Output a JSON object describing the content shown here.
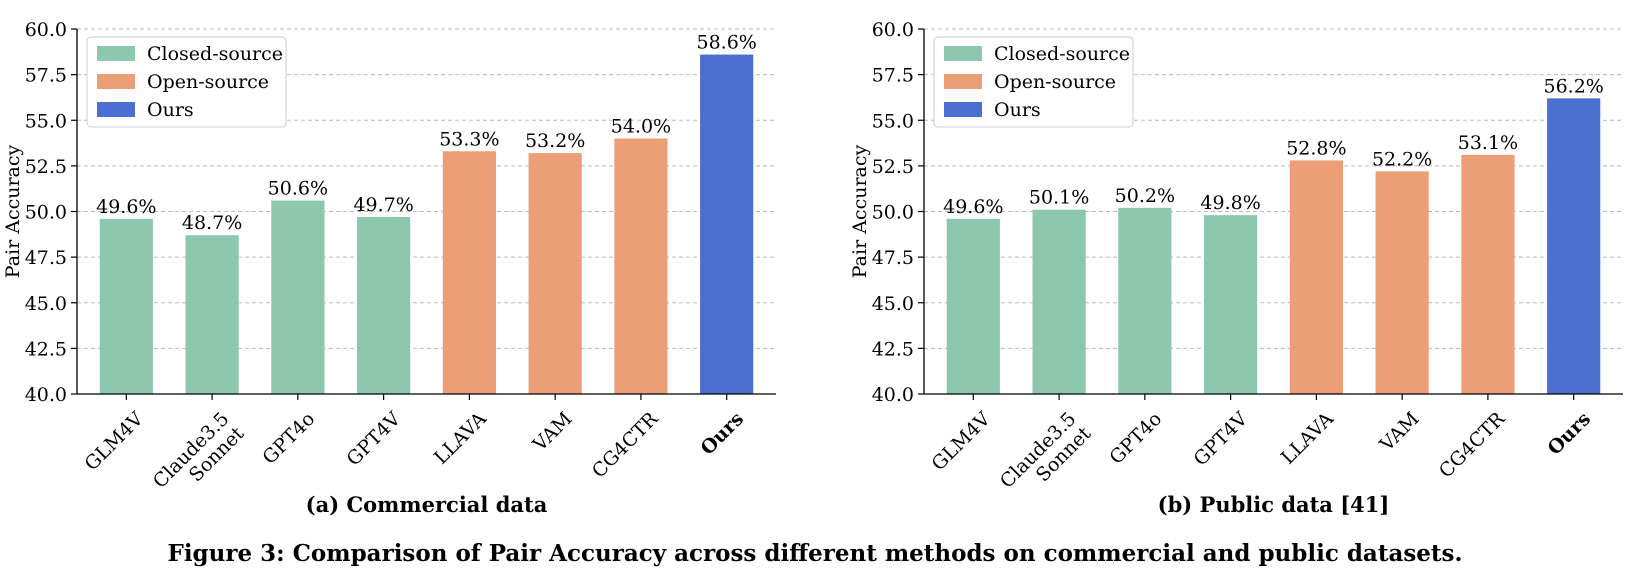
{
  "figure_caption": "Figure 3: Comparison of Pair Accuracy across different methods on commercial and public datasets.",
  "colors": {
    "closed_source": "#8dc7ae",
    "open_source": "#ec9e77",
    "ours": "#4a6fd1",
    "grid": "#bbbbbb",
    "axis": "#000000"
  },
  "chart_data": [
    {
      "type": "bar",
      "subcaption": "(a) Commercial data",
      "ylabel": "Pair Accuracy",
      "xlabel": "",
      "ylim": [
        40.0,
        60.0
      ],
      "yticks": [
        40.0,
        42.5,
        45.0,
        47.5,
        50.0,
        52.5,
        55.0,
        57.5,
        60.0
      ],
      "grid": true,
      "legend_position": "top-left",
      "legend": [
        {
          "label": "Closed-source",
          "group": "closed_source"
        },
        {
          "label": "Open-source",
          "group": "open_source"
        },
        {
          "label": "Ours",
          "group": "ours"
        }
      ],
      "categories": [
        "GLM4V",
        "Claude3.5\nSonnet",
        "GPT4o",
        "GPT4V",
        "LLAVA",
        "VAM",
        "CG4CTR",
        "Ours"
      ],
      "groups": [
        "closed_source",
        "closed_source",
        "closed_source",
        "closed_source",
        "open_source",
        "open_source",
        "open_source",
        "ours"
      ],
      "values": [
        49.6,
        48.7,
        50.6,
        49.7,
        53.3,
        53.2,
        54.0,
        58.6
      ],
      "value_labels": [
        "49.6%",
        "48.7%",
        "50.6%",
        "49.7%",
        "53.3%",
        "53.2%",
        "54.0%",
        "58.6%"
      ],
      "bold_categories": [
        "Ours"
      ]
    },
    {
      "type": "bar",
      "subcaption": "(b) Public data [41]",
      "ylabel": "Pair Accuracy",
      "xlabel": "",
      "ylim": [
        40.0,
        60.0
      ],
      "yticks": [
        40.0,
        42.5,
        45.0,
        47.5,
        50.0,
        52.5,
        55.0,
        57.5,
        60.0
      ],
      "grid": true,
      "legend_position": "top-left",
      "legend": [
        {
          "label": "Closed-source",
          "group": "closed_source"
        },
        {
          "label": "Open-source",
          "group": "open_source"
        },
        {
          "label": "Ours",
          "group": "ours"
        }
      ],
      "categories": [
        "GLM4V",
        "Claude3.5\nSonnet",
        "GPT4o",
        "GPT4V",
        "LLAVA",
        "VAM",
        "CG4CTR",
        "Ours"
      ],
      "groups": [
        "closed_source",
        "closed_source",
        "closed_source",
        "closed_source",
        "open_source",
        "open_source",
        "open_source",
        "ours"
      ],
      "values": [
        49.6,
        50.1,
        50.2,
        49.8,
        52.8,
        52.2,
        53.1,
        56.2
      ],
      "value_labels": [
        "49.6%",
        "50.1%",
        "50.2%",
        "49.8%",
        "52.8%",
        "52.2%",
        "53.1%",
        "56.2%"
      ],
      "bold_categories": [
        "Ours"
      ]
    }
  ]
}
